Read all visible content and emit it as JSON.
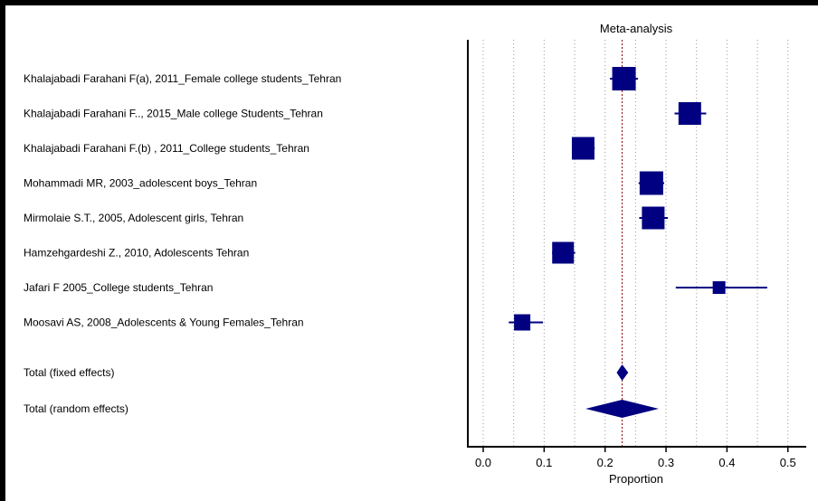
{
  "chart_data": {
    "type": "forest",
    "title": "Meta-analysis",
    "xlabel": "Proportion",
    "xlim": [
      -0.025,
      0.52
    ],
    "xticks": [
      0.0,
      0.1,
      0.2,
      0.3,
      0.4,
      0.5
    ],
    "xtick_labels": [
      "0.0",
      "0.1",
      "0.2",
      "0.3",
      "0.4",
      "0.5"
    ],
    "grid": "vertical-dotted",
    "reference_line": 0.228,
    "studies": [
      {
        "label": "Khalajabadi Farahani F(a), 2011_Female college students_Tehran",
        "estimate": 0.231,
        "ci": [
          0.208,
          0.254
        ],
        "weight": 1.0
      },
      {
        "label": "Khalajabadi Farahani F.., 2015_Male college Students_Tehran",
        "estimate": 0.339,
        "ci": [
          0.314,
          0.366
        ],
        "weight": 0.95
      },
      {
        "label": "Khalajabadi Farahani F.(b) , 2011_College students_Tehran",
        "estimate": 0.164,
        "ci": [
          0.146,
          0.183
        ],
        "weight": 0.95
      },
      {
        "label": "Mohammadi MR, 2003_adolescent boys_Tehran",
        "estimate": 0.276,
        "ci": [
          0.255,
          0.297
        ],
        "weight": 1.0
      },
      {
        "label": "Mirmolaie S.T., 2005, Adolescent girls, Tehran",
        "estimate": 0.279,
        "ci": [
          0.256,
          0.303
        ],
        "weight": 0.95
      },
      {
        "label": "Hamzehgardeshi Z., 2010, Adolescents Tehran",
        "estimate": 0.131,
        "ci": [
          0.113,
          0.151
        ],
        "weight": 0.9
      },
      {
        "label": "Jafari F 2005_College students_Tehran",
        "estimate": 0.387,
        "ci": [
          0.316,
          0.466
        ],
        "weight": 0.4
      },
      {
        "label": "Moosavi AS, 2008_Adolescents & Young Females_Tehran",
        "estimate": 0.064,
        "ci": [
          0.042,
          0.098
        ],
        "weight": 0.6
      }
    ],
    "totals": [
      {
        "label": "Total (fixed effects)",
        "estimate": 0.228,
        "ci": [
          0.219,
          0.238
        ]
      },
      {
        "label": "Total (random effects)",
        "estimate": 0.228,
        "ci": [
          0.168,
          0.288
        ]
      }
    ],
    "colors": {
      "marker": "#000080",
      "reference": "#8b0000",
      "grid": "#999999",
      "axis": "#000000",
      "frame": "#000000"
    }
  }
}
